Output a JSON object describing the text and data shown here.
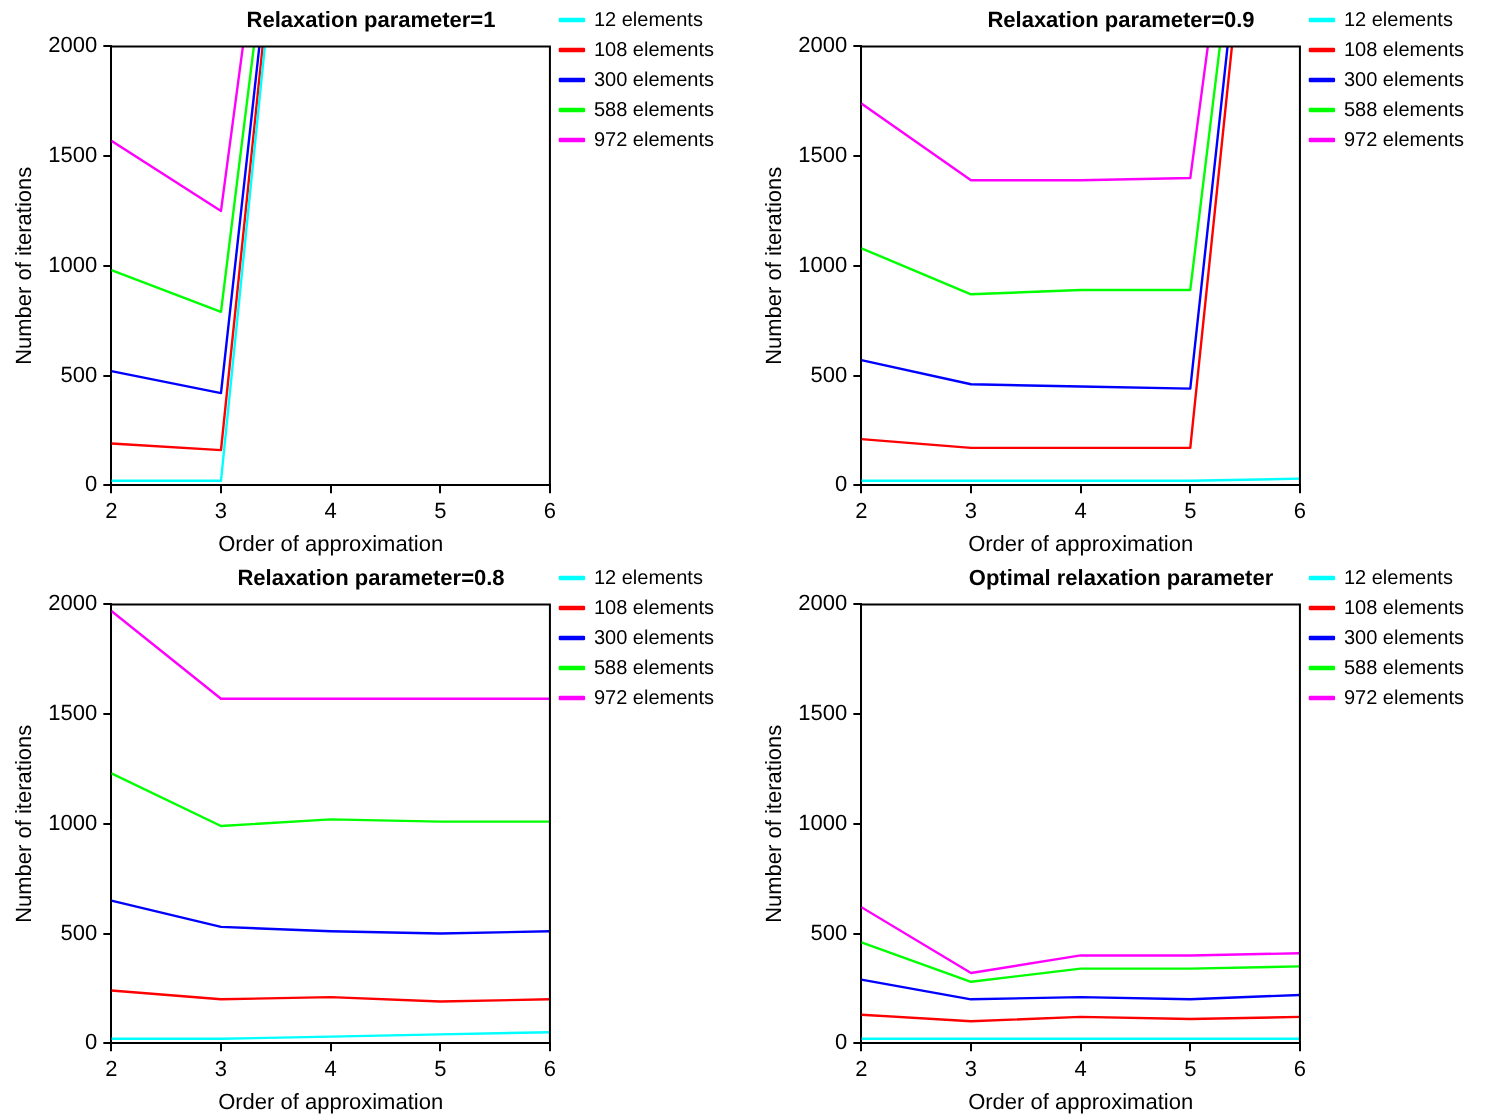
{
  "chart_data": [
    {
      "type": "line",
      "title": "Relaxation parameter=1",
      "xlabel": "Order of approximation",
      "ylabel": "Number of iterations",
      "xlim": [
        2,
        6
      ],
      "xticks": [
        2,
        3,
        4,
        5,
        6
      ],
      "ylim": [
        0,
        2000
      ],
      "yticks": [
        0,
        500,
        1000,
        1500,
        2000
      ],
      "grid": false,
      "legend": "top right",
      "marker": "none",
      "line_style": "solid",
      "series": [
        {
          "name": "12 elements",
          "color": "#00ffff",
          "x": [
            2,
            3,
            3.4
          ],
          "values": [
            20,
            20,
            2000
          ]
        },
        {
          "name": "108 elements",
          "color": "#ff0000",
          "x": [
            2,
            3,
            3.38
          ],
          "values": [
            190,
            160,
            2000
          ]
        },
        {
          "name": "300 elements",
          "color": "#0000ff",
          "x": [
            2,
            3,
            3.35
          ],
          "values": [
            520,
            420,
            2000
          ]
        },
        {
          "name": "588 elements",
          "color": "#00ff00",
          "x": [
            2,
            3,
            3.3
          ],
          "values": [
            980,
            790,
            2000
          ]
        },
        {
          "name": "972 elements",
          "color": "#ff00ff",
          "x": [
            2,
            3,
            3.2
          ],
          "values": [
            1570,
            1250,
            2000
          ]
        }
      ]
    },
    {
      "type": "line",
      "title": "Relaxation parameter=0.9",
      "xlabel": "Order of approximation",
      "ylabel": "Number of iterations",
      "xlim": [
        2,
        6
      ],
      "xticks": [
        2,
        3,
        4,
        5,
        6
      ],
      "ylim": [
        0,
        2000
      ],
      "yticks": [
        0,
        500,
        1000,
        1500,
        2000
      ],
      "grid": false,
      "legend": "top right",
      "marker": "none",
      "line_style": "solid",
      "series": [
        {
          "name": "12 elements",
          "color": "#00ffff",
          "x": [
            2,
            3,
            4,
            5,
            6
          ],
          "values": [
            20,
            20,
            20,
            20,
            30
          ]
        },
        {
          "name": "108 elements",
          "color": "#ff0000",
          "x": [
            2,
            3,
            4,
            5,
            5.38
          ],
          "values": [
            210,
            170,
            170,
            170,
            2000
          ]
        },
        {
          "name": "300 elements",
          "color": "#0000ff",
          "x": [
            2,
            3,
            4,
            5,
            5.34
          ],
          "values": [
            570,
            460,
            450,
            440,
            2000
          ]
        },
        {
          "name": "588 elements",
          "color": "#00ff00",
          "x": [
            2,
            3,
            4,
            5,
            5.27
          ],
          "values": [
            1080,
            870,
            890,
            890,
            2000
          ]
        },
        {
          "name": "972 elements",
          "color": "#ff00ff",
          "x": [
            2,
            3,
            4,
            5,
            5.16
          ],
          "values": [
            1740,
            1390,
            1390,
            1400,
            2000
          ]
        }
      ]
    },
    {
      "type": "line",
      "title": "Relaxation parameter=0.8",
      "xlabel": "Order of approximation",
      "ylabel": "Number of iterations",
      "xlim": [
        2,
        6
      ],
      "xticks": [
        2,
        3,
        4,
        5,
        6
      ],
      "ylim": [
        0,
        2000
      ],
      "yticks": [
        0,
        500,
        1000,
        1500,
        2000
      ],
      "grid": false,
      "legend": "top right",
      "marker": "none",
      "line_style": "solid",
      "series": [
        {
          "name": "12 elements",
          "color": "#00ffff",
          "x": [
            2,
            3,
            4,
            5,
            6
          ],
          "values": [
            20,
            20,
            30,
            40,
            50
          ]
        },
        {
          "name": "108 elements",
          "color": "#ff0000",
          "x": [
            2,
            3,
            4,
            5,
            6
          ],
          "values": [
            240,
            200,
            210,
            190,
            200
          ]
        },
        {
          "name": "300 elements",
          "color": "#0000ff",
          "x": [
            2,
            3,
            4,
            5,
            6
          ],
          "values": [
            650,
            530,
            510,
            500,
            510
          ]
        },
        {
          "name": "588 elements",
          "color": "#00ff00",
          "x": [
            2,
            3,
            4,
            5,
            6
          ],
          "values": [
            1230,
            990,
            1020,
            1010,
            1010
          ]
        },
        {
          "name": "972 elements",
          "color": "#ff00ff",
          "x": [
            2,
            3,
            6
          ],
          "values": [
            1970,
            1570,
            1570
          ]
        }
      ]
    },
    {
      "type": "line",
      "title": "Optimal relaxation parameter",
      "xlabel": "Order of approximation",
      "ylabel": "Number of iterations",
      "xlim": [
        2,
        6
      ],
      "xticks": [
        2,
        3,
        4,
        5,
        6
      ],
      "ylim": [
        0,
        2000
      ],
      "yticks": [
        0,
        500,
        1000,
        1500,
        2000
      ],
      "grid": false,
      "legend": "top right",
      "marker": "none",
      "line_style": "solid",
      "series": [
        {
          "name": "12 elements",
          "color": "#00ffff",
          "x": [
            2,
            3,
            4,
            5,
            6
          ],
          "values": [
            20,
            20,
            20,
            20,
            20
          ]
        },
        {
          "name": "108 elements",
          "color": "#ff0000",
          "x": [
            2,
            3,
            4,
            5,
            6
          ],
          "values": [
            130,
            100,
            120,
            110,
            120
          ]
        },
        {
          "name": "300 elements",
          "color": "#0000ff",
          "x": [
            2,
            3,
            4,
            5,
            6
          ],
          "values": [
            290,
            200,
            210,
            200,
            220
          ]
        },
        {
          "name": "588 elements",
          "color": "#00ff00",
          "x": [
            2,
            3,
            4,
            5,
            6
          ],
          "values": [
            460,
            280,
            340,
            340,
            350
          ]
        },
        {
          "name": "972 elements",
          "color": "#ff00ff",
          "x": [
            2,
            3,
            4,
            5,
            6
          ],
          "values": [
            620,
            320,
            400,
            400,
            410
          ]
        }
      ]
    }
  ]
}
